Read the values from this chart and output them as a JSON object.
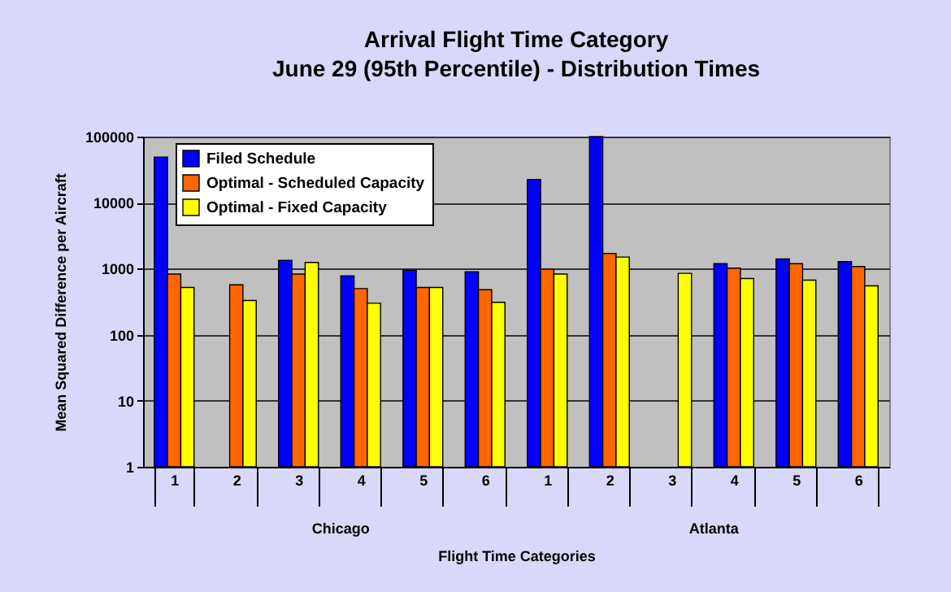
{
  "chart_data": {
    "type": "bar",
    "title": "Arrival  Flight Time Category",
    "subtitle": "June 29 (95th Percentile) - Distribution Times",
    "xlabel": "Flight Time Categories",
    "ylabel": "Mean Squared Difference per Aircraft",
    "categories": [
      "1",
      "2",
      "3",
      "4",
      "5",
      "6",
      "1",
      "2",
      "3",
      "4",
      "5",
      "6"
    ],
    "annotations": [
      "Chicago",
      "Atlanta"
    ],
    "series": [
      {
        "name": "Filed Schedule",
        "color": "#0000ff",
        "values": [
          49000,
          null,
          1340,
          780,
          950,
          900,
          22500,
          100000,
          null,
          1190,
          1400,
          1280
        ]
      },
      {
        "name": "Optimal - Scheduled Capacity",
        "color": "#ff6600",
        "values": [
          830,
          570,
          830,
          500,
          520,
          480,
          980,
          1700,
          null,
          1020,
          1190,
          1080
        ]
      },
      {
        "name": "Optimal - Fixed Capacity",
        "color": "#ffff00",
        "values": [
          520,
          330,
          1240,
          300,
          520,
          310,
          830,
          1500,
          850,
          710,
          670,
          550
        ]
      }
    ],
    "log": true,
    "ylim": [
      1,
      100000
    ],
    "yticks": [
      1,
      10,
      100,
      1000,
      10000,
      100000
    ],
    "grid": "y",
    "legend": "top left"
  }
}
